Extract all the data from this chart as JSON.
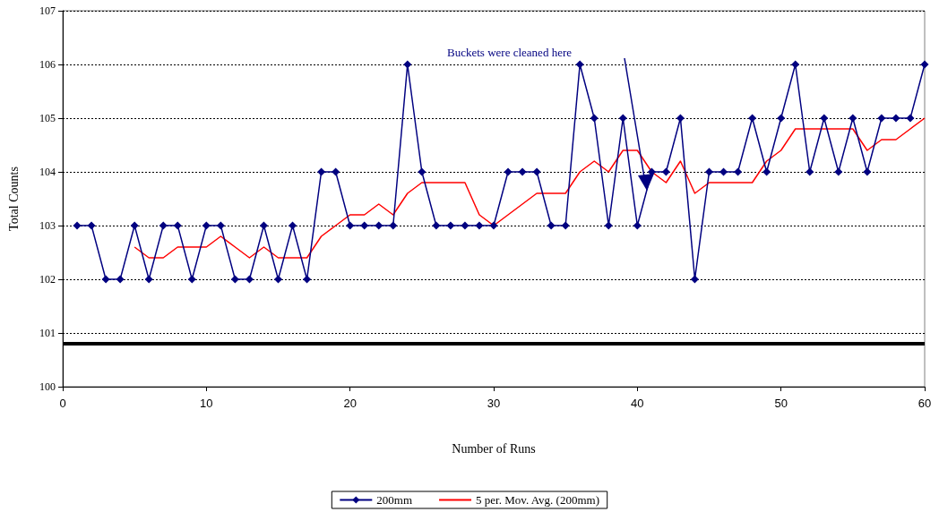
{
  "chart_data": {
    "type": "line",
    "xlabel": "Number of Runs",
    "ylabel": "Total Counts",
    "xlim": [
      0,
      60
    ],
    "xticks": [
      0,
      10,
      20,
      30,
      40,
      50,
      60
    ],
    "ylim": [
      100,
      107
    ],
    "yticks": [
      100,
      101,
      102,
      103,
      104,
      105,
      106,
      107
    ],
    "grid": "y",
    "legend": "bottom",
    "series": [
      {
        "name": "200mm",
        "color": "#000080",
        "marker": "diamond",
        "x": [
          1,
          2,
          3,
          4,
          5,
          6,
          7,
          8,
          9,
          10,
          11,
          12,
          13,
          14,
          15,
          16,
          17,
          18,
          19,
          20,
          21,
          22,
          23,
          24,
          25,
          26,
          27,
          28,
          29,
          30,
          31,
          32,
          33,
          34,
          35,
          36,
          37,
          38,
          39,
          40,
          41,
          42,
          43,
          44,
          45,
          46,
          47,
          48,
          49,
          50,
          51,
          52,
          53,
          54,
          55,
          56,
          57,
          58,
          59,
          60
        ],
        "values": [
          103,
          103,
          102,
          102,
          103,
          102,
          103,
          103,
          102,
          103,
          103,
          102,
          102,
          103,
          102,
          103,
          102,
          104,
          104,
          103,
          103,
          103,
          103,
          106,
          104,
          103,
          103,
          103,
          103,
          103,
          104,
          104,
          104,
          103,
          103,
          106,
          105,
          103,
          105,
          103,
          104,
          104,
          105,
          102,
          104,
          104,
          104,
          105,
          104,
          105,
          106,
          104,
          105,
          104,
          105,
          104,
          105,
          105,
          105,
          106
        ]
      },
      {
        "name": "5 per. Mov. Avg. (200mm)",
        "color": "#ff0000",
        "marker": "none",
        "x": [
          5,
          6,
          7,
          8,
          9,
          10,
          11,
          12,
          13,
          14,
          15,
          16,
          17,
          18,
          19,
          20,
          21,
          22,
          23,
          24,
          25,
          26,
          27,
          28,
          29,
          30,
          31,
          32,
          33,
          34,
          35,
          36,
          37,
          38,
          39,
          40,
          41,
          42,
          43,
          44,
          45,
          46,
          47,
          48,
          49,
          50,
          51,
          52,
          53,
          54,
          55,
          56,
          57,
          58,
          59,
          60
        ],
        "values": [
          102.6,
          102.4,
          102.4,
          102.6,
          102.6,
          102.6,
          102.8,
          102.6,
          102.4,
          102.6,
          102.4,
          102.4,
          102.4,
          102.8,
          103.0,
          103.2,
          103.2,
          103.4,
          103.2,
          103.6,
          103.8,
          103.8,
          103.8,
          103.8,
          103.2,
          103.0,
          103.2,
          103.4,
          103.6,
          103.6,
          103.6,
          104.0,
          104.2,
          104.0,
          104.4,
          104.4,
          104.0,
          103.8,
          104.2,
          103.6,
          103.8,
          103.8,
          103.8,
          103.8,
          104.2,
          104.4,
          104.8,
          104.8,
          104.8,
          104.8,
          104.8,
          104.4,
          104.6,
          104.6,
          104.8,
          105.0
        ]
      }
    ],
    "ref_lines": [
      {
        "axis": "y",
        "value": 100.8,
        "color": "#000000"
      }
    ],
    "annotations": [
      "Buckets were cleaned here"
    ]
  }
}
